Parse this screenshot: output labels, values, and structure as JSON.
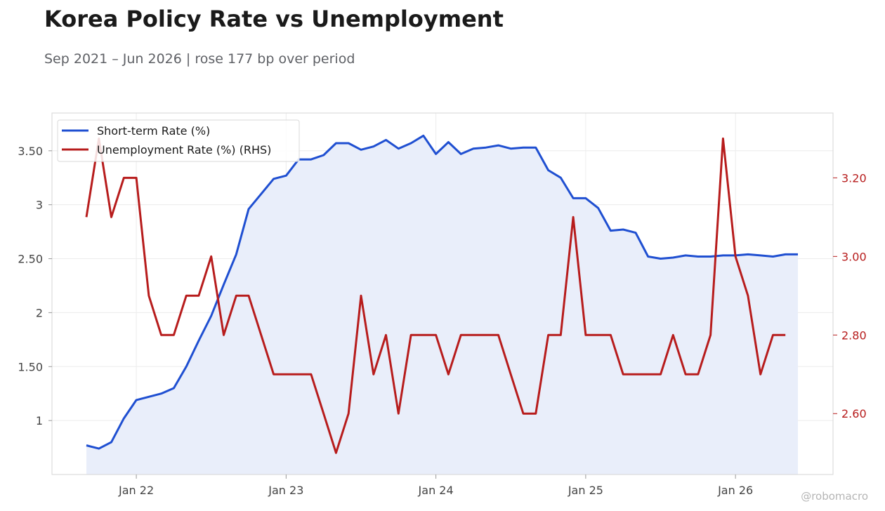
{
  "title": "Korea Policy Rate vs Unemployment",
  "subtitle": "Sep 2021 – Jun 2026 | rose 177 bp over period",
  "watermark": "@robomacro",
  "chart_data": {
    "type": "line",
    "x_start": "2021-09",
    "x_end": "2026-06",
    "x_ticks": [
      {
        "date": "2022-01",
        "label": "Jan 22"
      },
      {
        "date": "2023-01",
        "label": "Jan 23"
      },
      {
        "date": "2024-01",
        "label": "Jan 24"
      },
      {
        "date": "2025-01",
        "label": "Jan 25"
      },
      {
        "date": "2026-01",
        "label": "Jan 26"
      }
    ],
    "y_left": {
      "range": [
        0.5,
        3.85
      ],
      "ticks": [
        1,
        1.5,
        2,
        2.5,
        3,
        3.5
      ],
      "tick_labels": [
        "1",
        "1.50",
        "2",
        "2.50",
        "3",
        "3.50"
      ]
    },
    "y_right": {
      "range": [
        2.445,
        3.365
      ],
      "ticks": [
        2.6,
        2.8,
        3.0,
        3.2
      ],
      "tick_labels": [
        "2.60",
        "2.80",
        "3.00",
        "3.20"
      ]
    },
    "grid": true,
    "legend_position": "top-left",
    "series": [
      {
        "name": "Short-term Rate (%)",
        "axis": "left",
        "color": "#1f4fd1",
        "fill": "#e9eefa",
        "area": true,
        "x": [
          "2021-09",
          "2021-10",
          "2021-11",
          "2021-12",
          "2022-01",
          "2022-02",
          "2022-03",
          "2022-04",
          "2022-05",
          "2022-06",
          "2022-07",
          "2022-08",
          "2022-09",
          "2022-10",
          "2022-11",
          "2022-12",
          "2023-01",
          "2023-02",
          "2023-03",
          "2023-04",
          "2023-05",
          "2023-06",
          "2023-07",
          "2023-08",
          "2023-09",
          "2023-10",
          "2023-11",
          "2023-12",
          "2024-01",
          "2024-02",
          "2024-03",
          "2024-04",
          "2024-05",
          "2024-06",
          "2024-07",
          "2024-08",
          "2024-09",
          "2024-10",
          "2024-11",
          "2024-12",
          "2025-01",
          "2025-02",
          "2025-03",
          "2025-04",
          "2025-05",
          "2025-06",
          "2025-07",
          "2025-08",
          "2025-09",
          "2025-10",
          "2025-11",
          "2025-12",
          "2026-01",
          "2026-02",
          "2026-03",
          "2026-04",
          "2026-05",
          "2026-06"
        ],
        "values": [
          0.77,
          0.74,
          0.8,
          1.02,
          1.19,
          1.22,
          1.25,
          1.3,
          1.5,
          1.74,
          1.97,
          2.26,
          2.54,
          2.96,
          3.1,
          3.24,
          3.27,
          3.42,
          3.42,
          3.46,
          3.57,
          3.57,
          3.51,
          3.54,
          3.6,
          3.52,
          3.57,
          3.64,
          3.47,
          3.58,
          3.47,
          3.52,
          3.53,
          3.55,
          3.52,
          3.53,
          3.53,
          3.32,
          3.25,
          3.06,
          3.06,
          2.97,
          2.76,
          2.77,
          2.74,
          2.52,
          2.5,
          2.51,
          2.53,
          2.52,
          2.52,
          2.53,
          2.53,
          2.54,
          2.53,
          2.52,
          2.54,
          2.54
        ]
      },
      {
        "name": "Unemployment Rate (%) (RHS)",
        "axis": "right",
        "color": "#b71c1c",
        "x": [
          "2021-09",
          "2021-10",
          "2021-11",
          "2021-12",
          "2022-01",
          "2022-02",
          "2022-03",
          "2022-04",
          "2022-05",
          "2022-06",
          "2022-07",
          "2022-08",
          "2022-09",
          "2022-10",
          "2022-11",
          "2022-12",
          "2023-01",
          "2023-02",
          "2023-03",
          "2023-04",
          "2023-05",
          "2023-06",
          "2023-07",
          "2023-08",
          "2023-09",
          "2023-10",
          "2023-11",
          "2023-12",
          "2024-01",
          "2024-02",
          "2024-03",
          "2024-04",
          "2024-05",
          "2024-06",
          "2024-07",
          "2024-08",
          "2024-09",
          "2024-10",
          "2024-11",
          "2024-12",
          "2025-01",
          "2025-02",
          "2025-03",
          "2025-04",
          "2025-05",
          "2025-06",
          "2025-07",
          "2025-08",
          "2025-09",
          "2025-10",
          "2025-11",
          "2025-12",
          "2026-01",
          "2026-02",
          "2026-03",
          "2026-04",
          "2026-05"
        ],
        "values": [
          3.1,
          3.3,
          3.1,
          3.2,
          3.2,
          2.9,
          2.8,
          2.8,
          2.9,
          2.9,
          3.0,
          2.8,
          2.9,
          2.9,
          2.8,
          2.7,
          2.7,
          2.7,
          2.7,
          2.6,
          2.5,
          2.6,
          2.9,
          2.7,
          2.8,
          2.6,
          2.8,
          2.8,
          2.8,
          2.7,
          2.8,
          2.8,
          2.8,
          2.8,
          2.7,
          2.6,
          2.6,
          2.8,
          2.8,
          3.1,
          2.8,
          2.8,
          2.8,
          2.7,
          2.7,
          2.7,
          2.7,
          2.8,
          2.7,
          2.7,
          2.8,
          3.3,
          3.0,
          2.9,
          2.7,
          2.8,
          2.8
        ]
      }
    ]
  }
}
